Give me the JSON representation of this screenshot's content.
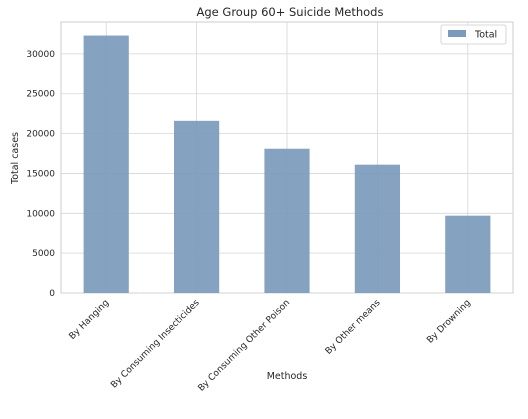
{
  "chart_data": {
    "type": "bar",
    "title": "Age Group 60+ Suicide Methods",
    "xlabel": "Methods",
    "ylabel": "Total cases",
    "categories": [
      "By Hanging",
      "By Consuming Insecticides",
      "By Consuming Other Poison",
      "By Other means",
      "By Drowning"
    ],
    "series": [
      {
        "name": "Total",
        "values": [
          32300,
          21600,
          18100,
          16100,
          9700
        ]
      }
    ],
    "ylim": [
      0,
      34000
    ],
    "yticks": [
      0,
      5000,
      10000,
      15000,
      20000,
      25000,
      30000
    ],
    "grid": true,
    "legend": "top-right",
    "bar_color": "#7b9bbb"
  }
}
